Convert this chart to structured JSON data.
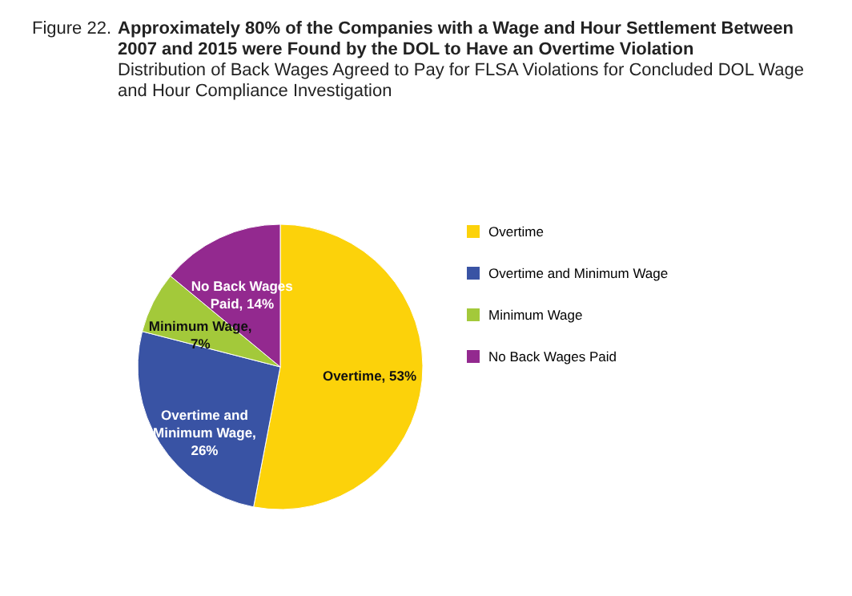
{
  "chart_data": {
    "type": "pie",
    "title": "Figure 22.  Approximately 80% of the Companies with a Wage and Hour Settlement Between 2007 and 2015 were Found by the DOL to Have an Overtime Violation",
    "subtitle": "Distribution of Back Wages Agreed to Pay for FLSA Violations for Concluded DOL Wage and Hour Compliance Investigation",
    "categories": [
      "Overtime",
      "Overtime and Minimum Wage",
      "Minimum Wage",
      "No Back Wages Paid"
    ],
    "values": [
      53,
      26,
      7,
      14
    ],
    "colors": [
      "#fcd20a",
      "#3953a4",
      "#a3c93a",
      "#93298f"
    ],
    "value_labels": [
      "Overtime, 53%",
      "Overtime and Minimum Wage, 26%",
      "Minimum Wage, 7%",
      "No Back Wages Paid, 14%"
    ],
    "legend": "right"
  }
}
